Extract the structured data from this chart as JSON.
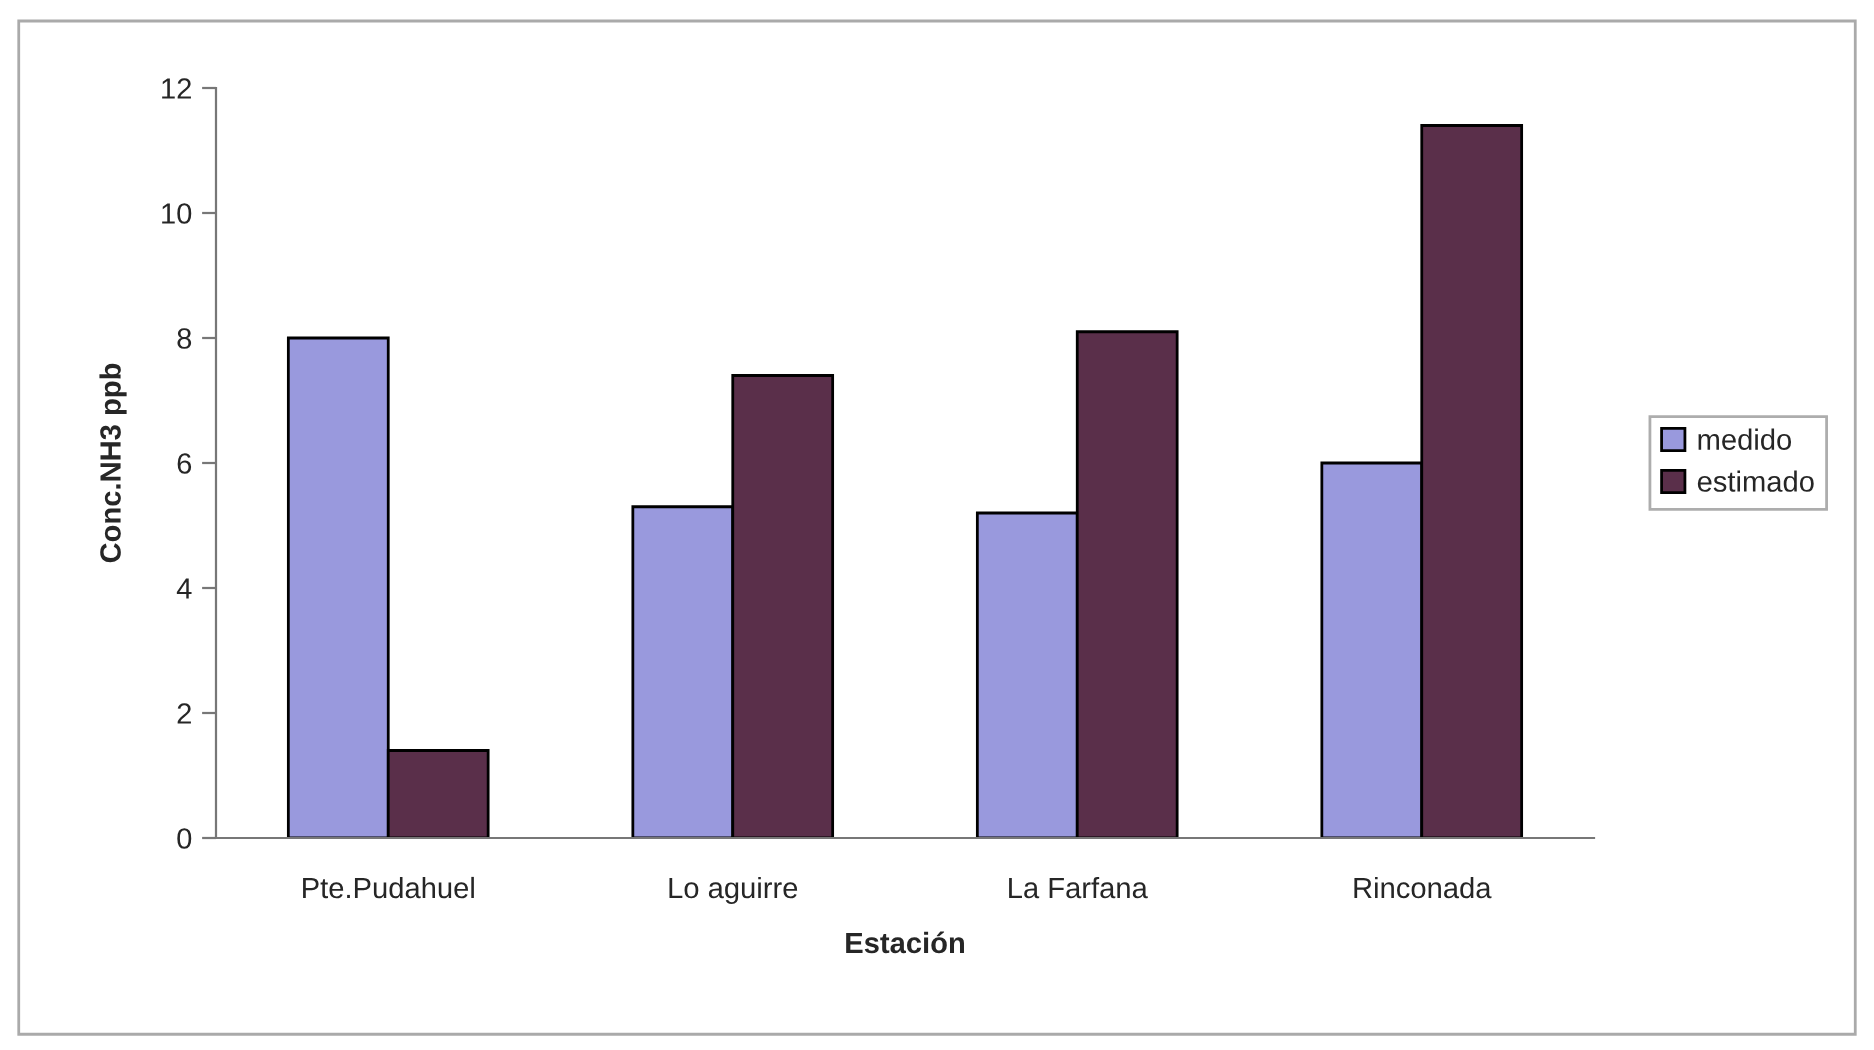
{
  "chart_data": {
    "type": "bar",
    "xlabel": "Estación",
    "ylabel": "Conc.NH3 ppb",
    "categories": [
      "Pte.Pudahuel",
      "Lo aguirre",
      "La Farfana",
      "Rinconada"
    ],
    "series": [
      {
        "name": "medido",
        "color": "#9999dd",
        "values": [
          8.0,
          5.3,
          5.2,
          6.0
        ]
      },
      {
        "name": "estimado",
        "color": "#5a2f4a",
        "values": [
          1.4,
          7.4,
          8.1,
          11.4
        ]
      }
    ],
    "ylim": [
      0,
      12
    ],
    "yticks": [
      0,
      2,
      4,
      6,
      8,
      10,
      12
    ],
    "grid": false,
    "legend": "right"
  }
}
